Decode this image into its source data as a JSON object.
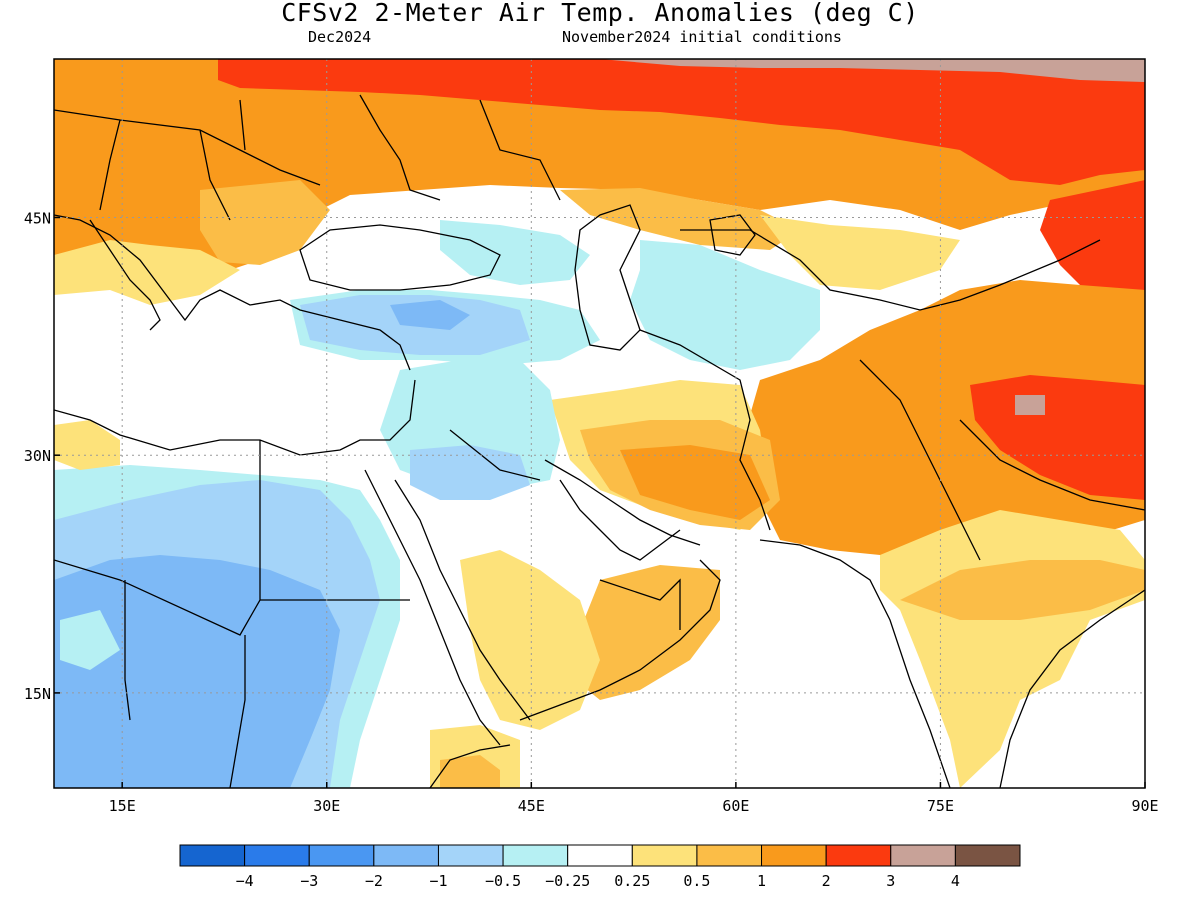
{
  "title": "CFSv2 2-Meter Air Temp. Anomalies (deg C)",
  "valid_month": "Dec2024",
  "initial_conditions": "November2024 initial conditions",
  "map": {
    "lon_range": [
      10,
      90
    ],
    "lat_range": [
      9,
      55
    ],
    "lon_ticks": [
      {
        "value": 15,
        "label": "15E"
      },
      {
        "value": 30,
        "label": "30E"
      },
      {
        "value": 45,
        "label": "45E"
      },
      {
        "value": 60,
        "label": "60E"
      },
      {
        "value": 75,
        "label": "75E"
      },
      {
        "value": 90,
        "label": "90E"
      }
    ],
    "lat_ticks": [
      {
        "value": 45,
        "label": "45N"
      },
      {
        "value": 30,
        "label": "30N"
      },
      {
        "value": 15,
        "label": "15N"
      }
    ],
    "grid": true
  },
  "colorbar": {
    "colors": [
      "#1565d0",
      "#2a7bea",
      "#4a97f2",
      "#7db9f6",
      "#a4d4f9",
      "#b6f0f3",
      "#ffffff",
      "#fde27a",
      "#fbbd47",
      "#f99a1c",
      "#fb3a0f",
      "#c8a298",
      "#7a5443"
    ],
    "labels": [
      "-4",
      "-3",
      "-2",
      "-1",
      "-0.5",
      "-0.25",
      "0.25",
      "0.5",
      "1",
      "2",
      "3",
      "4"
    ]
  },
  "colors": {
    "land_outline": "#000000",
    "grid": "#999999"
  }
}
